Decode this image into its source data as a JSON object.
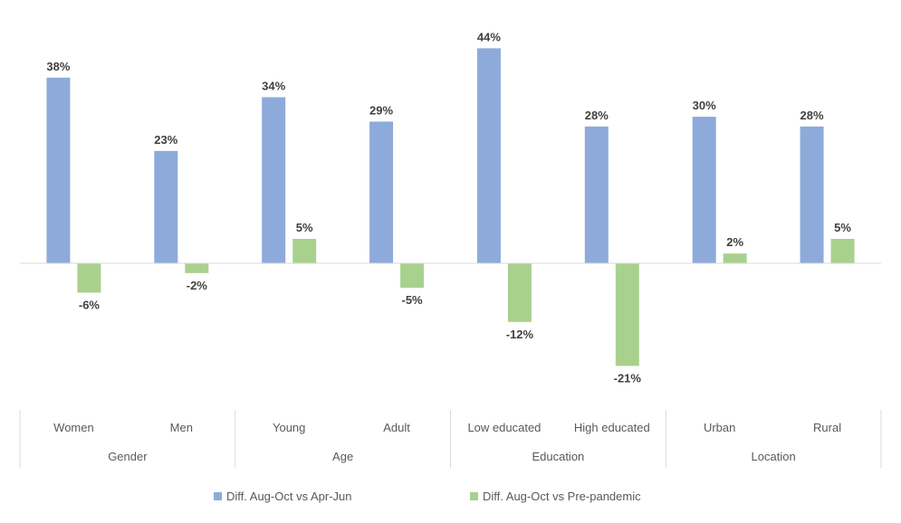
{
  "chart_data": {
    "type": "bar",
    "categories": [
      "Women",
      "Men",
      "Young",
      "Adult",
      "Low educated",
      "High educated",
      "Urban",
      "Rural"
    ],
    "groups": [
      {
        "label": "Gender",
        "categories": [
          "Women",
          "Men"
        ]
      },
      {
        "label": "Age",
        "categories": [
          "Young",
          "Adult"
        ]
      },
      {
        "label": "Education",
        "categories": [
          "Low educated",
          "High educated"
        ]
      },
      {
        "label": "Location",
        "categories": [
          "Urban",
          "Rural"
        ]
      }
    ],
    "series": [
      {
        "name": "Diff. Aug-Oct vs Apr-Jun",
        "color": "#8eaadb",
        "values": [
          38,
          23,
          34,
          29,
          44,
          28,
          30,
          28
        ]
      },
      {
        "name": "Diff. Aug-Oct vs Pre-pandemic",
        "color": "#a9d18e",
        "values": [
          -6,
          -2,
          5,
          -5,
          -12,
          -21,
          2,
          5
        ]
      }
    ],
    "value_suffix": "%",
    "ylim": [
      -25,
      45
    ],
    "grid": false,
    "legend_position": "bottom",
    "axis_color": "#d9d9d9"
  }
}
